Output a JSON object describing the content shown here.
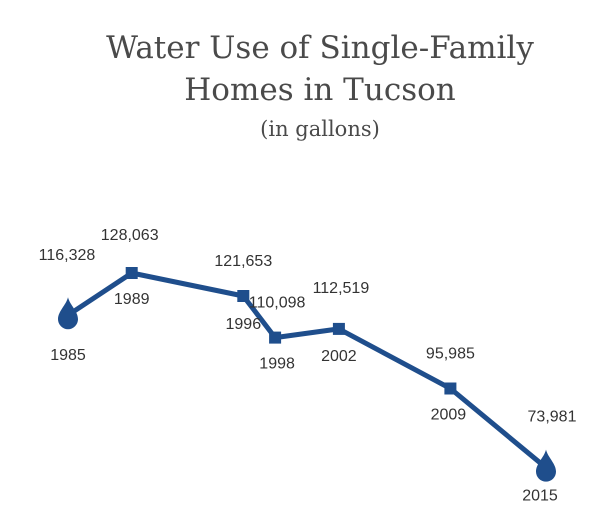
{
  "chart_data": {
    "type": "line",
    "title": "Water Use of Single-Family Homes in Tucson",
    "title_lines": [
      "Water Use of Single-Family",
      "Homes in Tucson"
    ],
    "subtitle": "(in gallons)",
    "xlabel": "",
    "ylabel": "",
    "grid": false,
    "x": [
      "1985",
      "1989",
      "1996",
      "1998",
      "2002",
      "2009",
      "2015"
    ],
    "values": [
      116328,
      128063,
      121653,
      110098,
      112519,
      95985,
      73981
    ],
    "value_labels": [
      "116,328",
      "128,063",
      "121,653",
      "110,098",
      "112,519",
      "95,985",
      "73,981"
    ],
    "ylim": [
      70000,
      135000
    ],
    "line_color": "#1f4e8c",
    "endpoint_marker": "water-drop",
    "midpoint_marker": "square"
  }
}
